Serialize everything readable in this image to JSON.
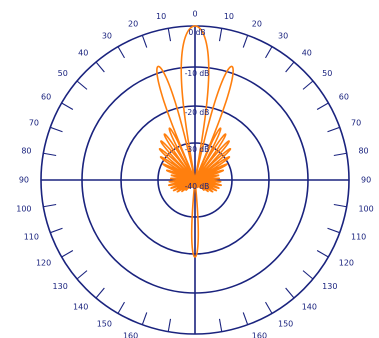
{
  "chart_data": {
    "type": "polar",
    "angular_unit": "degrees",
    "angle_labels": [
      {
        "angle": 0,
        "left": "0",
        "right": "0"
      },
      {
        "angle": 10,
        "left": "10",
        "right": "10"
      },
      {
        "angle": 20,
        "left": "20",
        "right": "20"
      },
      {
        "angle": 30,
        "left": "30",
        "right": "30"
      },
      {
        "angle": 40,
        "left": "40",
        "right": "40"
      },
      {
        "angle": 50,
        "left": "50",
        "right": "50"
      },
      {
        "angle": 60,
        "left": "60",
        "right": "60"
      },
      {
        "angle": 70,
        "left": "70",
        "right": "70"
      },
      {
        "angle": 80,
        "left": "80",
        "right": "80"
      },
      {
        "angle": 90,
        "left": "90",
        "right": "90"
      },
      {
        "angle": 100,
        "left": "100",
        "right": "100"
      },
      {
        "angle": 110,
        "left": "110",
        "right": "110"
      },
      {
        "angle": 120,
        "left": "120",
        "right": "120"
      },
      {
        "angle": 130,
        "left": "130",
        "right": "130"
      },
      {
        "angle": 140,
        "left": "140",
        "right": "140"
      },
      {
        "angle": 150,
        "left": "150",
        "right": "150"
      },
      {
        "angle": 160,
        "left": "160",
        "right": "160"
      }
    ],
    "radial_labels": [
      "0 dB",
      "-10 dB",
      "-20 dB",
      "-30 dB",
      "-40 dB"
    ],
    "radial_range_db": [
      -40,
      0
    ],
    "series": [
      {
        "color": "#ff7f0e",
        "lobes": [
          {
            "angle_deg": 0,
            "level_db": 0,
            "half_width_deg": 11
          },
          {
            "angle_deg": 18,
            "level_db": -9,
            "half_width_deg": 6
          },
          {
            "angle_deg": -18,
            "level_db": -9,
            "half_width_deg": 6
          },
          {
            "angle_deg": 180,
            "level_db": -20,
            "half_width_deg": 7
          }
        ],
        "sidelobe_envelope_db": [
          {
            "angle_deg": 28,
            "level_db": -25
          },
          {
            "angle_deg": 45,
            "level_db": -27
          },
          {
            "angle_deg": 60,
            "level_db": -30
          },
          {
            "angle_deg": 80,
            "level_db": -34
          },
          {
            "angle_deg": 100,
            "level_db": -33
          },
          {
            "angle_deg": 120,
            "level_db": -34
          },
          {
            "angle_deg": 150,
            "level_db": -38
          }
        ]
      }
    ]
  }
}
